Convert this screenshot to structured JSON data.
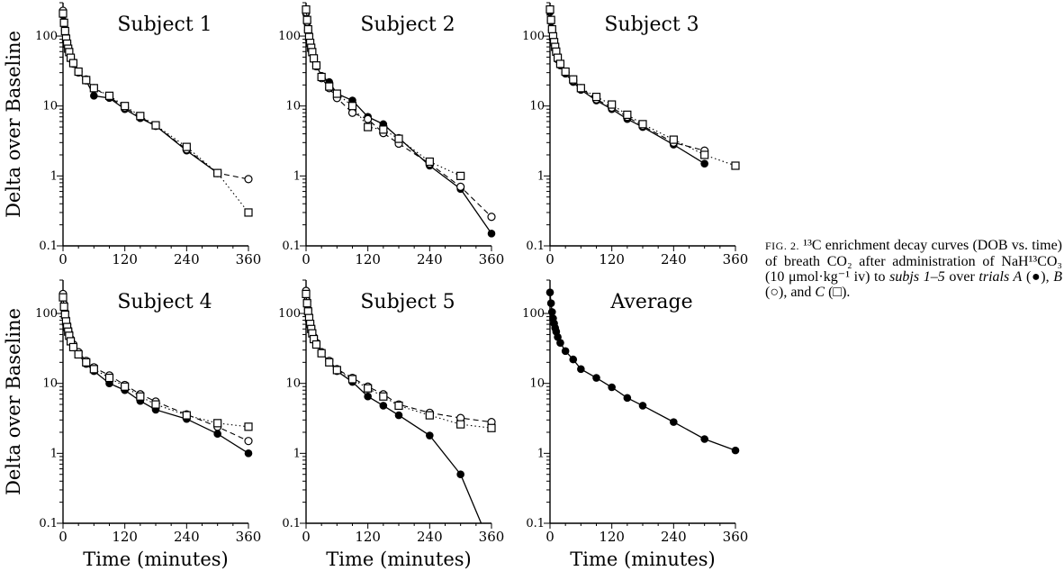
{
  "chart_data": {
    "type": "scatter",
    "y_scale": "log",
    "y_axis_label": "Delta over Baseline",
    "x_axis_label": "Time (minutes)",
    "xlim": [
      0,
      360
    ],
    "ylim": [
      0.1,
      300
    ],
    "x_ticks": [
      "0",
      "120",
      "240",
      "360"
    ],
    "y_ticks": [
      "0.1",
      "1",
      "10",
      "100"
    ],
    "grid": false,
    "panels": [
      {
        "title": "Subject 1",
        "series": [
          {
            "name": "A",
            "marker": "filled-circle",
            "line": "solid",
            "x": [
              0,
              2,
              4,
              6,
              8,
              10,
              12,
              15,
              20,
              30,
              45,
              60,
              90,
              120,
              150,
              180,
              240,
              300
            ],
            "y": [
              200,
              150,
              115,
              90,
              75,
              65,
              58,
              48,
              40,
              30,
              23,
              14,
              13,
              9,
              6.7,
              5.2,
              2.3,
              1.1
            ]
          },
          {
            "name": "B",
            "marker": "open-circle",
            "line": "dashed",
            "x": [
              0,
              2,
              4,
              6,
              8,
              10,
              12,
              15,
              20,
              30,
              45,
              60,
              90,
              120,
              150,
              180,
              240,
              300,
              360
            ],
            "y": [
              230,
              160,
              120,
              95,
              80,
              68,
              60,
              50,
              42,
              31,
              24,
              18,
              13.5,
              9.5,
              7,
              5.2,
              2.4,
              1.1,
              0.9
            ]
          },
          {
            "name": "C",
            "marker": "open-square",
            "line": "dotted",
            "x": [
              0,
              2,
              4,
              6,
              8,
              10,
              12,
              15,
              20,
              30,
              45,
              60,
              90,
              120,
              150,
              180,
              240,
              300,
              360
            ],
            "y": [
              210,
              155,
              118,
              92,
              78,
              66,
              59,
              49,
              41,
              31,
              23.5,
              18,
              14,
              10,
              7.2,
              5.3,
              2.6,
              1.1,
              0.3
            ]
          }
        ]
      },
      {
        "title": "Subject 2",
        "series": [
          {
            "name": "A",
            "marker": "filled-circle",
            "line": "solid",
            "x": [
              0,
              2,
              4,
              6,
              8,
              10,
              12,
              15,
              20,
              30,
              45,
              60,
              90,
              120,
              150,
              180,
              240,
              300,
              360
            ],
            "y": [
              210,
              155,
              115,
              92,
              76,
              66,
              57,
              47,
              38,
              27,
              22,
              15,
              12,
              7,
              5.5,
              3.5,
              1.4,
              0.65,
              0.15
            ]
          },
          {
            "name": "B",
            "marker": "open-circle",
            "line": "dashed",
            "x": [
              0,
              2,
              4,
              6,
              8,
              10,
              12,
              15,
              20,
              30,
              45,
              60,
              90,
              120,
              150,
              180,
              240,
              300,
              360
            ],
            "y": [
              220,
              160,
              120,
              95,
              78,
              67,
              58,
              47,
              37,
              25,
              18,
              13,
              8,
              6.5,
              4.1,
              2.9,
              1.5,
              0.7,
              0.26
            ]
          },
          {
            "name": "C",
            "marker": "open-square",
            "line": "dotted",
            "x": [
              0,
              2,
              4,
              6,
              8,
              10,
              12,
              15,
              20,
              30,
              45,
              60,
              90,
              120,
              150,
              180,
              240,
              300
            ],
            "y": [
              240,
              170,
              125,
              97,
              80,
              68,
              59,
              48,
              38,
              26,
              19,
              15,
              10,
              5,
              4.6,
              3.4,
              1.6,
              1.0
            ]
          }
        ]
      },
      {
        "title": "Subject 3",
        "series": [
          {
            "name": "A",
            "marker": "filled-circle",
            "line": "solid",
            "x": [
              0,
              2,
              4,
              6,
              8,
              10,
              12,
              15,
              20,
              30,
              45,
              60,
              90,
              120,
              150,
              180,
              240,
              300
            ],
            "y": [
              220,
              160,
              120,
              95,
              78,
              66,
              57,
              46,
              38,
              29,
              22,
              17,
              12,
              9,
              6.5,
              5,
              2.8,
              1.5
            ]
          },
          {
            "name": "B",
            "marker": "open-circle",
            "line": "dashed",
            "x": [
              0,
              2,
              4,
              6,
              8,
              10,
              12,
              15,
              20,
              30,
              45,
              60,
              90,
              120,
              150,
              180,
              240,
              300
            ],
            "y": [
              230,
              165,
              122,
              97,
              80,
              68,
              58,
              48,
              39,
              30,
              23,
              18,
              12.5,
              9.5,
              7,
              5.2,
              3,
              2.3
            ]
          },
          {
            "name": "C",
            "marker": "open-square",
            "line": "dotted",
            "x": [
              0,
              2,
              4,
              6,
              8,
              10,
              12,
              15,
              20,
              30,
              45,
              60,
              90,
              120,
              150,
              180,
              240,
              300,
              360
            ],
            "y": [
              240,
              170,
              125,
              99,
              82,
              70,
              60,
              49,
              40,
              31,
              24,
              18,
              13.5,
              10.5,
              7.5,
              5.5,
              3.3,
              2,
              1.4
            ]
          }
        ]
      },
      {
        "title": "Subject 4",
        "series": [
          {
            "name": "A",
            "marker": "filled-circle",
            "line": "solid",
            "x": [
              0,
              2,
              4,
              6,
              8,
              10,
              12,
              15,
              20,
              30,
              45,
              60,
              90,
              120,
              150,
              180,
              240,
              300,
              360
            ],
            "y": [
              180,
              130,
              100,
              80,
              66,
              57,
              50,
              41,
              34,
              26,
              19,
              15,
              10,
              8,
              5.6,
              4.2,
              3.1,
              1.9,
              1.0
            ]
          },
          {
            "name": "B",
            "marker": "open-circle",
            "line": "dashed",
            "x": [
              0,
              2,
              4,
              6,
              8,
              10,
              12,
              15,
              20,
              30,
              45,
              60,
              90,
              120,
              150,
              180,
              240,
              300,
              360
            ],
            "y": [
              190,
              135,
              104,
              83,
              69,
              59,
              52,
              43,
              36,
              28,
              21,
              17,
              13,
              9.5,
              7,
              5.5,
              3.6,
              2.4,
              1.5
            ]
          },
          {
            "name": "C",
            "marker": "open-square",
            "line": "dotted",
            "x": [
              0,
              2,
              4,
              6,
              8,
              10,
              12,
              15,
              20,
              30,
              45,
              60,
              90,
              120,
              150,
              180,
              240,
              300,
              360
            ],
            "y": [
              170,
              125,
              96,
              77,
              64,
              55,
              48,
              40,
              33,
              26,
              20,
              16,
              12,
              9,
              6.5,
              5,
              3.5,
              2.7,
              2.4
            ]
          }
        ]
      },
      {
        "title": "Subject 5",
        "series": [
          {
            "name": "A",
            "marker": "filled-circle",
            "line": "solid",
            "x": [
              0,
              2,
              4,
              6,
              8,
              10,
              12,
              15,
              20,
              30,
              45,
              60,
              90,
              120,
              150,
              180,
              240,
              300,
              340
            ],
            "y": [
              200,
              145,
              110,
              88,
              72,
              61,
              53,
              44,
              37,
              28,
              20,
              15,
              10.5,
              6.5,
              4.8,
              3.5,
              1.8,
              0.5,
              0.1
            ]
          },
          {
            "name": "B",
            "marker": "open-circle",
            "line": "dashed",
            "x": [
              0,
              2,
              4,
              6,
              8,
              10,
              12,
              15,
              20,
              30,
              45,
              60,
              90,
              120,
              150,
              180,
              240,
              300,
              360
            ],
            "y": [
              210,
              150,
              113,
              90,
              74,
              63,
              55,
              46,
              38,
              28,
              21,
              16,
              12,
              9,
              7,
              5,
              3.8,
              3.2,
              2.8
            ]
          },
          {
            "name": "C",
            "marker": "open-square",
            "line": "dotted",
            "x": [
              0,
              2,
              4,
              6,
              8,
              10,
              12,
              15,
              20,
              30,
              45,
              60,
              90,
              120,
              150,
              180,
              240,
              300,
              360
            ],
            "y": [
              190,
              140,
              107,
              86,
              71,
              60,
              52,
              43,
              36,
              27,
              20,
              15.5,
              11.5,
              8.5,
              6.5,
              4.8,
              3.5,
              2.6,
              2.3
            ]
          }
        ]
      },
      {
        "title": "Average",
        "series": [
          {
            "name": "Average",
            "marker": "filled-circle",
            "line": "solid",
            "x": [
              0,
              2,
              4,
              6,
              8,
              10,
              12,
              15,
              20,
              30,
              45,
              60,
              90,
              120,
              150,
              180,
              240,
              300,
              360
            ],
            "y": [
              200,
              140,
              105,
              85,
              72,
              62,
              55,
              46,
              38,
              29,
              22,
              16,
              12,
              8.8,
              6.2,
              4.8,
              2.8,
              1.6,
              1.1
            ]
          }
        ]
      }
    ]
  },
  "caption": {
    "label": "FIG. 2.",
    "text_1": " ¹³C enrichment decay curves (DOB vs. time) of breath CO₂ after administration of NaH¹³CO₃ (10 μmol·kg⁻¹ iv) to ",
    "subjs": "subjs 1–5",
    "text_2": " over ",
    "trials": "trials A",
    "text_3": " (●), ",
    "b": "B",
    "text_4": " (○), and ",
    "c": "C",
    "text_5": " (□)."
  }
}
